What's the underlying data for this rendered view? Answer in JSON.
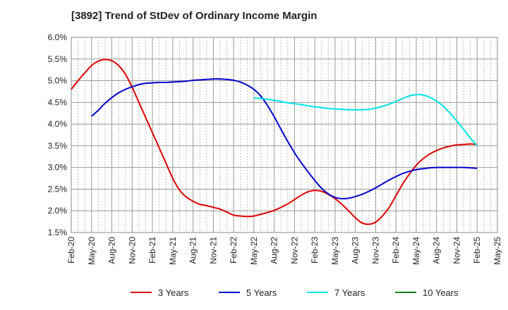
{
  "chart_data": {
    "type": "line",
    "title": "[3892]  Trend of StDev of Ordinary Income Margin",
    "xlabel": "",
    "ylabel": "",
    "x_tick_labels": [
      "Feb-20",
      "May-20",
      "Aug-20",
      "Nov-20",
      "Feb-21",
      "May-21",
      "Aug-21",
      "Nov-21",
      "Feb-22",
      "May-22",
      "Aug-22",
      "Nov-22",
      "Feb-23",
      "May-23",
      "Aug-23",
      "Nov-23",
      "Feb-24",
      "May-24",
      "Aug-24",
      "Nov-24",
      "Feb-25",
      "May-25"
    ],
    "y_tick_labels": [
      "6.0%",
      "5.5%",
      "5.0%",
      "4.5%",
      "4.0%",
      "3.5%",
      "3.0%",
      "2.5%",
      "2.0%",
      "1.5%"
    ],
    "ylim": [
      1.5,
      6.0
    ],
    "y_unit": "%",
    "grid": true,
    "legend_position": "bottom",
    "series": [
      {
        "name": "3 Years",
        "color": "#dd0000",
        "x": [
          "2020-02",
          "2020-03",
          "2020-04",
          "2020-05",
          "2020-06",
          "2020-07",
          "2020-08",
          "2020-09",
          "2020-10",
          "2020-11",
          "2020-12",
          "2021-01",
          "2021-02",
          "2021-03",
          "2021-04",
          "2021-05",
          "2021-06",
          "2021-07",
          "2021-08",
          "2021-09",
          "2021-10",
          "2021-11",
          "2021-12",
          "2022-01",
          "2022-02",
          "2022-03",
          "2022-04",
          "2022-05",
          "2022-06",
          "2022-07",
          "2022-08",
          "2022-09",
          "2022-10",
          "2022-11",
          "2022-12",
          "2023-01",
          "2023-02",
          "2023-03",
          "2023-04",
          "2023-05",
          "2023-06",
          "2023-07",
          "2023-08",
          "2023-09",
          "2023-10",
          "2023-11",
          "2023-12",
          "2024-01",
          "2024-02",
          "2024-03",
          "2024-04",
          "2024-05",
          "2024-06",
          "2024-07",
          "2024-08",
          "2024-09",
          "2024-10",
          "2024-11",
          "2024-12",
          "2025-01",
          "2025-02"
        ],
        "values": [
          4.8,
          5.0,
          5.18,
          5.35,
          5.45,
          5.49,
          5.46,
          5.35,
          5.15,
          4.85,
          4.5,
          4.15,
          3.8,
          3.45,
          3.1,
          2.75,
          2.48,
          2.32,
          2.22,
          2.15,
          2.12,
          2.08,
          2.04,
          1.97,
          1.9,
          1.88,
          1.87,
          1.88,
          1.92,
          1.96,
          2.01,
          2.08,
          2.16,
          2.26,
          2.36,
          2.44,
          2.47,
          2.45,
          2.38,
          2.28,
          2.15,
          2.0,
          1.84,
          1.72,
          1.69,
          1.74,
          1.88,
          2.08,
          2.35,
          2.62,
          2.85,
          3.05,
          3.2,
          3.31,
          3.39,
          3.45,
          3.49,
          3.52,
          3.53,
          3.54,
          3.53
        ]
      },
      {
        "name": "5 Years",
        "color": "#0000cc",
        "x": [
          "2020-05",
          "2020-06",
          "2020-07",
          "2020-08",
          "2020-09",
          "2020-10",
          "2020-11",
          "2020-12",
          "2021-01",
          "2021-02",
          "2021-03",
          "2021-04",
          "2021-05",
          "2021-06",
          "2021-07",
          "2021-08",
          "2021-09",
          "2021-10",
          "2021-11",
          "2021-12",
          "2022-01",
          "2022-02",
          "2022-03",
          "2022-04",
          "2022-05",
          "2022-06",
          "2022-07",
          "2022-08",
          "2022-09",
          "2022-10",
          "2022-11",
          "2022-12",
          "2023-01",
          "2023-02",
          "2023-03",
          "2023-04",
          "2023-05",
          "2023-06",
          "2023-07",
          "2023-08",
          "2023-09",
          "2023-10",
          "2023-11",
          "2023-12",
          "2024-01",
          "2024-02",
          "2024-03",
          "2024-04",
          "2024-05",
          "2024-06",
          "2024-07",
          "2024-08",
          "2024-09",
          "2024-10",
          "2024-11",
          "2024-12",
          "2025-01",
          "2025-02"
        ],
        "values": [
          4.18,
          4.32,
          4.48,
          4.61,
          4.72,
          4.8,
          4.86,
          4.91,
          4.94,
          4.95,
          4.96,
          4.96,
          4.97,
          4.98,
          4.99,
          5.01,
          5.02,
          5.03,
          5.04,
          5.04,
          5.03,
          5.01,
          4.97,
          4.9,
          4.8,
          4.65,
          4.43,
          4.17,
          3.88,
          3.6,
          3.34,
          3.11,
          2.9,
          2.7,
          2.52,
          2.39,
          2.31,
          2.28,
          2.29,
          2.33,
          2.38,
          2.45,
          2.53,
          2.62,
          2.71,
          2.79,
          2.86,
          2.91,
          2.95,
          2.97,
          2.99,
          3.0,
          3.0,
          3.0,
          3.0,
          3.0,
          2.99,
          2.98
        ]
      },
      {
        "name": "7 Years",
        "color": "#00e5e5",
        "x": [
          "2022-05",
          "2022-06",
          "2022-07",
          "2022-08",
          "2022-09",
          "2022-10",
          "2022-11",
          "2022-12",
          "2023-01",
          "2023-02",
          "2023-03",
          "2023-04",
          "2023-05",
          "2023-06",
          "2023-07",
          "2023-08",
          "2023-09",
          "2023-10",
          "2023-11",
          "2023-12",
          "2024-01",
          "2024-02",
          "2024-03",
          "2024-04",
          "2024-05",
          "2024-06",
          "2024-07",
          "2024-08",
          "2024-09",
          "2024-10",
          "2024-11",
          "2024-12",
          "2025-01",
          "2025-02"
        ],
        "values": [
          4.6,
          4.59,
          4.57,
          4.55,
          4.52,
          4.49,
          4.47,
          4.45,
          4.42,
          4.4,
          4.38,
          4.36,
          4.35,
          4.34,
          4.33,
          4.33,
          4.33,
          4.34,
          4.37,
          4.41,
          4.46,
          4.52,
          4.59,
          4.65,
          4.68,
          4.67,
          4.62,
          4.53,
          4.41,
          4.25,
          4.07,
          3.88,
          3.68,
          3.5
        ]
      },
      {
        "name": "10 Years",
        "color": "#008000",
        "x": [],
        "values": []
      }
    ]
  }
}
